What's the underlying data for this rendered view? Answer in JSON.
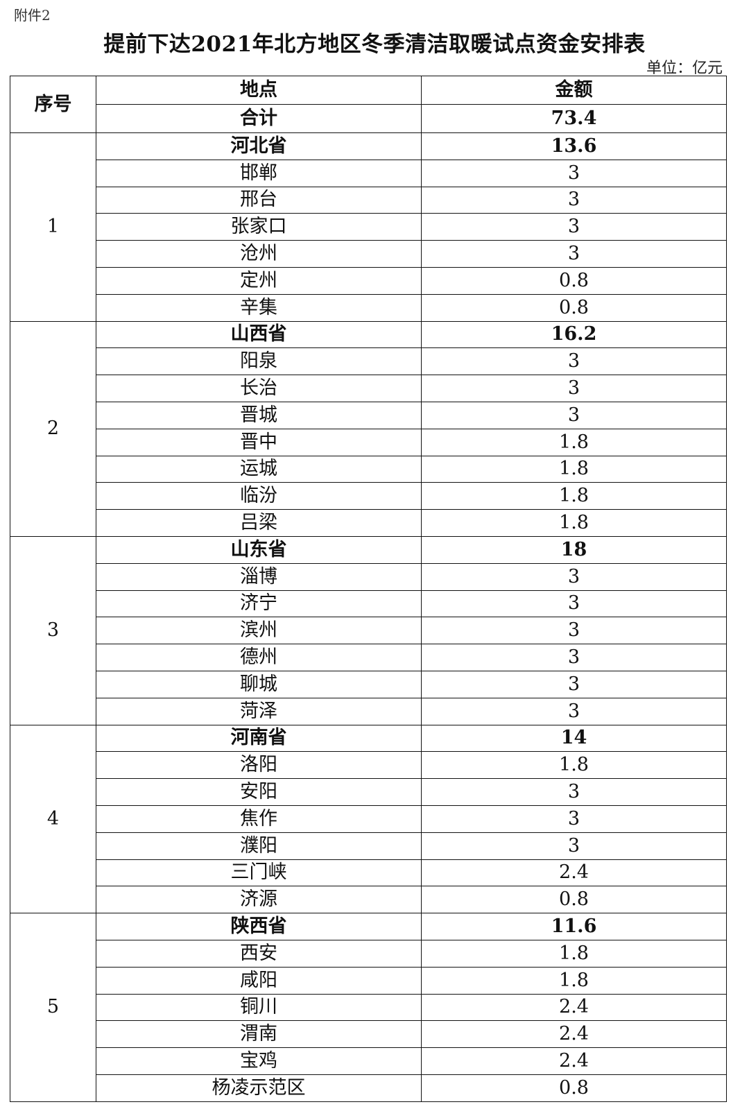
{
  "attachment_label": "附件2",
  "title": "提前下达2021年北方地区冬季清洁取暖试点资金安排表",
  "unit": "单位：亿元",
  "headers": {
    "seq": "序号",
    "place": "地点",
    "amount": "金额"
  },
  "total": {
    "label": "合计",
    "amount": "73.4"
  },
  "groups": [
    {
      "seq": "1",
      "province": "河北省",
      "amount": "13.6",
      "cities": [
        {
          "name": "邯郸",
          "amount": "3"
        },
        {
          "name": "邢台",
          "amount": "3"
        },
        {
          "name": "张家口",
          "amount": "3"
        },
        {
          "name": "沧州",
          "amount": "3"
        },
        {
          "name": "定州",
          "amount": "0.8"
        },
        {
          "name": "辛集",
          "amount": "0.8"
        }
      ]
    },
    {
      "seq": "2",
      "province": "山西省",
      "amount": "16.2",
      "cities": [
        {
          "name": "阳泉",
          "amount": "3"
        },
        {
          "name": "长治",
          "amount": "3"
        },
        {
          "name": "晋城",
          "amount": "3"
        },
        {
          "name": "晋中",
          "amount": "1.8"
        },
        {
          "name": "运城",
          "amount": "1.8"
        },
        {
          "name": "临汾",
          "amount": "1.8"
        },
        {
          "name": "吕梁",
          "amount": "1.8"
        }
      ]
    },
    {
      "seq": "3",
      "province": "山东省",
      "amount": "18",
      "cities": [
        {
          "name": "淄博",
          "amount": "3"
        },
        {
          "name": "济宁",
          "amount": "3"
        },
        {
          "name": "滨州",
          "amount": "3"
        },
        {
          "name": "德州",
          "amount": "3"
        },
        {
          "name": "聊城",
          "amount": "3"
        },
        {
          "name": "菏泽",
          "amount": "3"
        }
      ]
    },
    {
      "seq": "4",
      "province": "河南省",
      "amount": "14",
      "cities": [
        {
          "name": "洛阳",
          "amount": "1.8"
        },
        {
          "name": "安阳",
          "amount": "3"
        },
        {
          "name": "焦作",
          "amount": "3"
        },
        {
          "name": "濮阳",
          "amount": "3"
        },
        {
          "name": "三门峡",
          "amount": "2.4"
        },
        {
          "name": "济源",
          "amount": "0.8"
        }
      ]
    },
    {
      "seq": "5",
      "province": "陕西省",
      "amount": "11.6",
      "cities": [
        {
          "name": "西安",
          "amount": "1.8"
        },
        {
          "name": "咸阳",
          "amount": "1.8"
        },
        {
          "name": "铜川",
          "amount": "2.4"
        },
        {
          "name": "渭南",
          "amount": "2.4"
        },
        {
          "name": "宝鸡",
          "amount": "2.4"
        },
        {
          "name": "杨凌示范区",
          "amount": "0.8"
        }
      ]
    }
  ]
}
